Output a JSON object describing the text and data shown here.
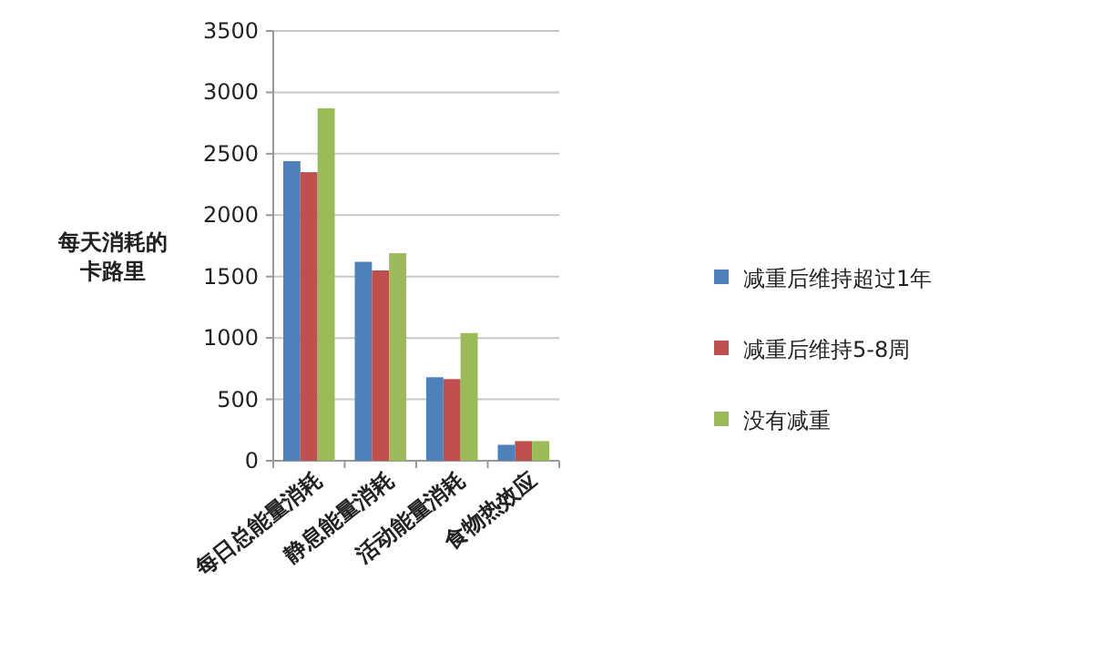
{
  "chart_data": {
    "type": "bar",
    "ylabel": "每天消耗的卡路里",
    "categories": [
      "每日总能量消耗",
      "静息能量消耗",
      "活动能量消耗",
      "食物热效应"
    ],
    "series": [
      {
        "name": "减重后维持超过1年",
        "color": "#4f81bd",
        "values": [
          2440,
          1620,
          680,
          130
        ]
      },
      {
        "name": "减重后维持5-8周",
        "color": "#c0504d",
        "values": [
          2350,
          1550,
          665,
          160
        ]
      },
      {
        "name": "没有减重",
        "color": "#9bbb59",
        "values": [
          2870,
          1690,
          1040,
          160
        ]
      }
    ],
    "ylim": [
      0,
      3500
    ],
    "yticks": [
      0,
      500,
      1000,
      1500,
      2000,
      2500,
      3000,
      3500
    ],
    "grid": "y",
    "legend": "right"
  }
}
